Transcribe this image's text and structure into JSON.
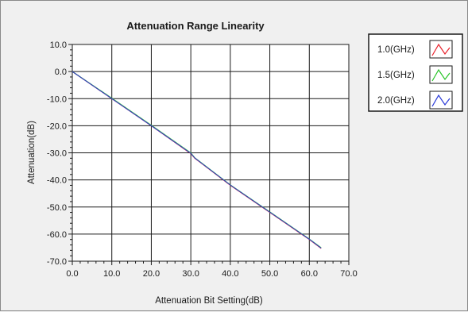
{
  "chart_data": {
    "type": "line",
    "title": "Attenuation Range Linearity",
    "xlabel": "Attenuation Bit Setting(dB)",
    "ylabel": "Attenuation(dB)",
    "xlim": [
      0,
      70
    ],
    "ylim": [
      -70,
      10
    ],
    "grid": true,
    "legend_position": "right",
    "x_ticks": [
      0,
      10,
      20,
      30,
      40,
      50,
      60,
      70
    ],
    "y_ticks": [
      10,
      0,
      -10,
      -20,
      -30,
      -40,
      -50,
      -60,
      -70
    ],
    "x_tick_labels": [
      "0.0",
      "10.0",
      "20.0",
      "30.0",
      "40.0",
      "50.0",
      "60.0",
      "70.0"
    ],
    "y_tick_labels": [
      "10.0",
      "0.0",
      "-10.0",
      "-20.0",
      "-30.0",
      "-40.0",
      "-50.0",
      "-60.0",
      "-70.0"
    ],
    "series": [
      {
        "name": "1.0(GHz)",
        "color": "#e8202a",
        "x": [
          0,
          10,
          20,
          30,
          31,
          40,
          50,
          60,
          63
        ],
        "values": [
          0,
          -10,
          -20,
          -30.3,
          -32,
          -42,
          -52,
          -62,
          -65.3
        ]
      },
      {
        "name": "1.5(GHz)",
        "color": "#27c427",
        "x": [
          0,
          10,
          20,
          30,
          31,
          40,
          50,
          60,
          63
        ],
        "values": [
          0,
          -9.8,
          -19.8,
          -30,
          -31.8,
          -41.8,
          -51.8,
          -61.8,
          -65
        ]
      },
      {
        "name": "2.0(GHz)",
        "color": "#2838d8",
        "x": [
          0,
          10,
          20,
          30,
          31,
          40,
          50,
          60,
          63
        ],
        "values": [
          0,
          -10,
          -20,
          -30.2,
          -31.9,
          -41.9,
          -51.9,
          -61.9,
          -65.2
        ]
      }
    ]
  }
}
